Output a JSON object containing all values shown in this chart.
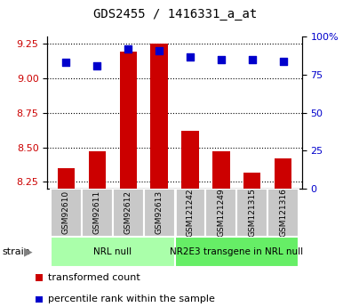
{
  "title": "GDS2455 / 1416331_a_at",
  "samples": [
    "GSM92610",
    "GSM92611",
    "GSM92612",
    "GSM92613",
    "GSM121242",
    "GSM121249",
    "GSM121315",
    "GSM121316"
  ],
  "transformed_counts": [
    8.35,
    8.47,
    9.19,
    9.25,
    8.62,
    8.47,
    8.32,
    8.42
  ],
  "percentile_ranks": [
    83,
    81,
    92,
    91,
    87,
    85,
    85,
    84
  ],
  "groups": [
    {
      "label": "NRL null",
      "start": 0,
      "end": 3,
      "color": "#aaffaa"
    },
    {
      "label": "NR2E3 transgene in NRL null",
      "start": 4,
      "end": 7,
      "color": "#66ee66"
    }
  ],
  "ylim_left": [
    8.2,
    9.3
  ],
  "ylim_right": [
    0,
    100
  ],
  "yticks_left": [
    8.25,
    8.5,
    8.75,
    9.0,
    9.25
  ],
  "yticks_right": [
    0,
    25,
    50,
    75,
    100
  ],
  "bar_color": "#cc0000",
  "dot_color": "#0000cc",
  "bar_bottom": 8.2,
  "left_axis_color": "#cc0000",
  "right_axis_color": "#0000cc",
  "legend_items": [
    {
      "label": "transformed count",
      "color": "#cc0000"
    },
    {
      "label": "percentile rank within the sample",
      "color": "#0000cc"
    }
  ],
  "sample_box_color": "#c8c8c8",
  "title_fontsize": 10,
  "tick_fontsize": 8,
  "label_fontsize": 7.5
}
